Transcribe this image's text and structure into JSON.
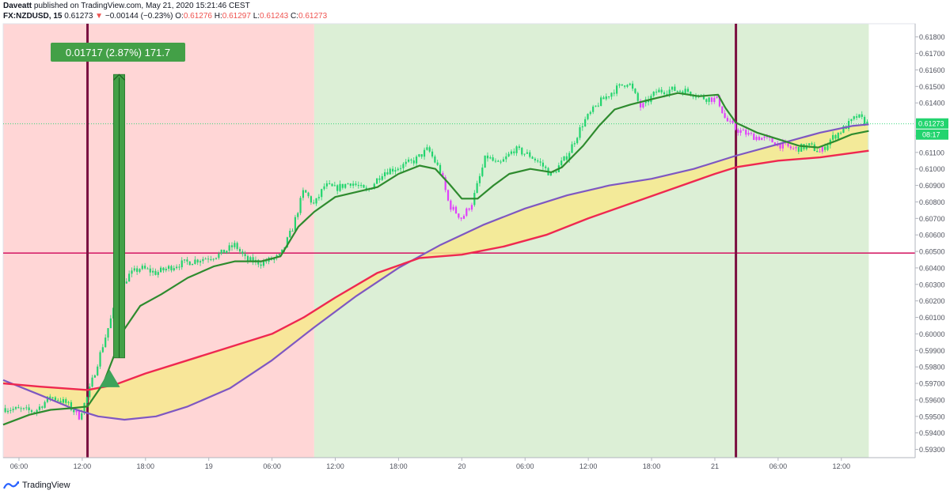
{
  "header": {
    "publisher": "Daveatt",
    "published_text": "published on TradingView.com, May 21, 2020 15:21:46 CEST",
    "symbol": "FX:NZDUSD, 15",
    "last": "0.61273",
    "change": "−0.00144 (−0.23%)",
    "o_label": "O:",
    "o": "0.61276",
    "h_label": "H:",
    "h": "0.61297",
    "l_label": "L:",
    "l": "0.61243",
    "c_label": "C:",
    "c": "0.61273"
  },
  "footer": {
    "brand": "TradingView",
    "icon": "tradingview-logo-icon"
  },
  "colors": {
    "bull": "#22d46e",
    "bear": "#e040fb",
    "bg_red": "#ffd6d6",
    "bg_green": "#dcefd6",
    "ema_fast": "#2e8b2e",
    "ema_slow": "#ef2850",
    "ema_purple": "#7e57c2",
    "fill": "#f7e98e",
    "hline": "#d6246b",
    "vline": "#7a1040",
    "measure": "#43a047"
  },
  "measure_label": "0.01717 (2.87%) 171.7",
  "price_badge": "0.61273",
  "countdown_badge": "08:17",
  "chart_data": {
    "type": "candlestick",
    "symbol": "FX:NZDUSD",
    "interval": "15",
    "x_ticks": [
      {
        "t": 0.0,
        "label": "06:00"
      },
      {
        "t": 6.0,
        "label": "12:00"
      },
      {
        "t": 12.0,
        "label": "18:00"
      },
      {
        "t": 18.0,
        "label": "19"
      },
      {
        "t": 24.0,
        "label": "06:00"
      },
      {
        "t": 30.0,
        "label": "12:00"
      },
      {
        "t": 36.0,
        "label": "18:00"
      },
      {
        "t": 42.0,
        "label": "20"
      },
      {
        "t": 48.0,
        "label": "06:00"
      },
      {
        "t": 54.0,
        "label": "12:00"
      },
      {
        "t": 60.0,
        "label": "18:00"
      },
      {
        "t": 66.0,
        "label": "21"
      },
      {
        "t": 72.0,
        "label": "06:00"
      },
      {
        "t": 78.0,
        "label": "12:00"
      }
    ],
    "y_ticks": [
      "0.59300",
      "0.59400",
      "0.59500",
      "0.59600",
      "0.59700",
      "0.59800",
      "0.59900",
      "0.60000",
      "0.60100",
      "0.60200",
      "0.60300",
      "0.60400",
      "0.60500",
      "0.60600",
      "0.60700",
      "0.60800",
      "0.60900",
      "0.61000",
      "0.61100",
      "0.61200",
      "0.61400",
      "0.61500",
      "0.61600",
      "0.61700",
      "0.61800"
    ],
    "ylim": [
      0.5925,
      0.6188
    ],
    "xlim": [
      -1.5,
      85
    ],
    "last_price": 0.61273,
    "horizontal_line": 0.6049,
    "vertical_lines_t": [
      6.5,
      68.0
    ],
    "background_zones": [
      {
        "from": -1.5,
        "to": 28.0,
        "color": "red"
      },
      {
        "from": 28.0,
        "to": 80.6,
        "color": "green"
      }
    ],
    "measure": {
      "t": 9.5,
      "from": 0.59855,
      "to": 0.61572,
      "label": "0.01717 (2.87%) 171.7"
    },
    "signal_triangle": {
      "t": 8.6,
      "price": 0.59725
    },
    "close_path": [
      [
        -1.5,
        0.5955
      ],
      [
        1.5,
        0.5953
      ],
      [
        3.0,
        0.5962
      ],
      [
        4.5,
        0.5958
      ],
      [
        5.7,
        0.595
      ],
      [
        6.5,
        0.5962
      ],
      [
        7.8,
        0.599
      ],
      [
        9.0,
        0.6015
      ],
      [
        10.3,
        0.6035
      ],
      [
        11.5,
        0.604
      ],
      [
        13.0,
        0.6037
      ],
      [
        15.0,
        0.6042
      ],
      [
        17.0,
        0.6045
      ],
      [
        19.0,
        0.6048
      ],
      [
        20.5,
        0.6054
      ],
      [
        21.5,
        0.6045
      ],
      [
        23.0,
        0.6043
      ],
      [
        24.8,
        0.6047
      ],
      [
        26.0,
        0.6065
      ],
      [
        27.0,
        0.6087
      ],
      [
        28.0,
        0.6078
      ],
      [
        29.0,
        0.609
      ],
      [
        30.0,
        0.6088
      ],
      [
        31.5,
        0.6092
      ],
      [
        33.0,
        0.6086
      ],
      [
        34.5,
        0.6098
      ],
      [
        36.0,
        0.6101
      ],
      [
        37.5,
        0.6105
      ],
      [
        38.8,
        0.6112
      ],
      [
        40.0,
        0.6098
      ],
      [
        40.8,
        0.6078
      ],
      [
        42.0,
        0.607
      ],
      [
        43.0,
        0.608
      ],
      [
        44.3,
        0.6108
      ],
      [
        45.5,
        0.6102
      ],
      [
        47.0,
        0.6112
      ],
      [
        48.5,
        0.6108
      ],
      [
        49.5,
        0.6103
      ],
      [
        50.5,
        0.6096
      ],
      [
        52.0,
        0.6108
      ],
      [
        53.5,
        0.6128
      ],
      [
        55.0,
        0.614
      ],
      [
        56.5,
        0.6148
      ],
      [
        57.8,
        0.6153
      ],
      [
        59.0,
        0.6137
      ],
      [
        60.5,
        0.6147
      ],
      [
        62.0,
        0.6148
      ],
      [
        63.5,
        0.6147
      ],
      [
        65.0,
        0.6143
      ],
      [
        66.3,
        0.6142
      ],
      [
        67.0,
        0.613
      ],
      [
        68.0,
        0.6124
      ],
      [
        69.5,
        0.612
      ],
      [
        71.0,
        0.6118
      ],
      [
        72.0,
        0.6115
      ],
      [
        73.5,
        0.6112
      ],
      [
        75.0,
        0.6114
      ],
      [
        76.0,
        0.611
      ],
      [
        77.0,
        0.6118
      ],
      [
        78.5,
        0.6126
      ],
      [
        79.5,
        0.6132
      ],
      [
        80.5,
        0.61273
      ]
    ],
    "ema_fast": [
      [
        -1.5,
        0.5945
      ],
      [
        1.0,
        0.5951
      ],
      [
        3.0,
        0.5954
      ],
      [
        5.0,
        0.5955
      ],
      [
        6.5,
        0.5956
      ],
      [
        8.0,
        0.597
      ],
      [
        10.0,
        0.6003
      ],
      [
        11.5,
        0.6017
      ],
      [
        13.5,
        0.6024
      ],
      [
        16.0,
        0.6034
      ],
      [
        18.5,
        0.6041
      ],
      [
        20.5,
        0.6044
      ],
      [
        23.0,
        0.6044
      ],
      [
        24.8,
        0.6047
      ],
      [
        26.5,
        0.6065
      ],
      [
        28.0,
        0.6074
      ],
      [
        30.0,
        0.6083
      ],
      [
        32.0,
        0.6086
      ],
      [
        34.0,
        0.6089
      ],
      [
        36.0,
        0.6097
      ],
      [
        38.0,
        0.6102
      ],
      [
        39.5,
        0.61
      ],
      [
        40.8,
        0.6091
      ],
      [
        42.0,
        0.6082
      ],
      [
        43.5,
        0.6082
      ],
      [
        45.0,
        0.609
      ],
      [
        46.5,
        0.6097
      ],
      [
        48.5,
        0.61
      ],
      [
        50.5,
        0.6098
      ],
      [
        51.5,
        0.6101
      ],
      [
        53.5,
        0.6114
      ],
      [
        55.0,
        0.6126
      ],
      [
        56.5,
        0.6136
      ],
      [
        58.0,
        0.6139
      ],
      [
        60.5,
        0.6143
      ],
      [
        62.5,
        0.6146
      ],
      [
        64.5,
        0.6144
      ],
      [
        66.3,
        0.6145
      ],
      [
        67.0,
        0.6137
      ],
      [
        68.0,
        0.6128
      ],
      [
        70.0,
        0.6122
      ],
      [
        72.0,
        0.6118
      ],
      [
        74.0,
        0.6114
      ],
      [
        75.8,
        0.6113
      ],
      [
        77.5,
        0.6117
      ],
      [
        79.0,
        0.6121
      ],
      [
        80.6,
        0.6123
      ]
    ],
    "ema_slow": [
      [
        -1.5,
        0.597
      ],
      [
        2.0,
        0.5968
      ],
      [
        6.5,
        0.5966
      ],
      [
        9.0,
        0.5969
      ],
      [
        12.0,
        0.5976
      ],
      [
        16.0,
        0.5984
      ],
      [
        20.0,
        0.5992
      ],
      [
        24.0,
        0.6
      ],
      [
        27.0,
        0.601
      ],
      [
        30.0,
        0.6022
      ],
      [
        34.0,
        0.6037
      ],
      [
        38.0,
        0.6046
      ],
      [
        42.0,
        0.6048
      ],
      [
        46.0,
        0.6053
      ],
      [
        50.0,
        0.606
      ],
      [
        54.0,
        0.607
      ],
      [
        58.0,
        0.6079
      ],
      [
        62.0,
        0.6088
      ],
      [
        66.0,
        0.6097
      ],
      [
        68.0,
        0.6101
      ],
      [
        72.0,
        0.6105
      ],
      [
        76.0,
        0.6107
      ],
      [
        80.6,
        0.6111
      ]
    ],
    "ema_purple": [
      [
        -1.5,
        0.5972
      ],
      [
        2.0,
        0.5963
      ],
      [
        5.0,
        0.5955
      ],
      [
        7.5,
        0.595
      ],
      [
        10.0,
        0.5948
      ],
      [
        13.0,
        0.595
      ],
      [
        16.0,
        0.5956
      ],
      [
        20.0,
        0.5967
      ],
      [
        24.0,
        0.5984
      ],
      [
        28.0,
        0.6004
      ],
      [
        32.0,
        0.6023
      ],
      [
        36.0,
        0.604
      ],
      [
        40.0,
        0.6054
      ],
      [
        44.0,
        0.6066
      ],
      [
        48.0,
        0.6076
      ],
      [
        52.0,
        0.6084
      ],
      [
        56.0,
        0.609
      ],
      [
        60.0,
        0.6094
      ],
      [
        64.0,
        0.61
      ],
      [
        68.0,
        0.6108
      ],
      [
        72.0,
        0.6115
      ],
      [
        76.0,
        0.6122
      ],
      [
        79.0,
        0.6126
      ],
      [
        80.6,
        0.6127
      ]
    ]
  }
}
